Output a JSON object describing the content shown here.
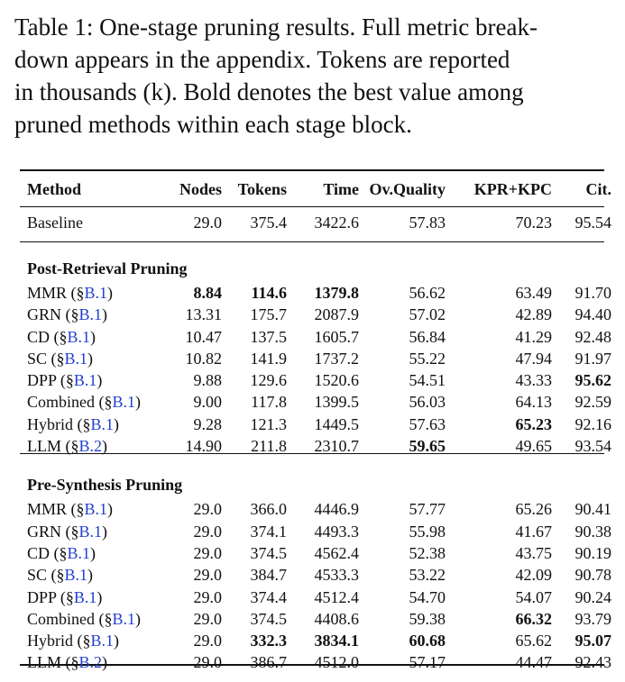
{
  "caption": {
    "lines": [
      "Table 1: One-stage pruning results. Full metric break-",
      "down appears in the appendix.  Tokens are reported",
      "in thousands (k).  Bold denotes the best value among",
      "pruned methods within each stage block."
    ]
  },
  "table": {
    "columns": [
      "Method",
      "Nodes",
      "Tokens",
      "Time",
      "Ov.Quality",
      "KPR+KPC",
      "Cit."
    ],
    "baseline": {
      "method": "Baseline",
      "values": [
        "29.0",
        "375.4",
        "3422.6",
        "57.83",
        "70.23",
        "95.54"
      ]
    },
    "sections": [
      {
        "title": "Post-Retrieval Pruning",
        "rows": [
          {
            "name": "MMR",
            "ref": "B.1",
            "values": [
              "8.84",
              "114.6",
              "1379.8",
              "56.62",
              "63.49",
              "91.70"
            ],
            "bold": [
              0,
              1,
              2
            ]
          },
          {
            "name": "GRN",
            "ref": "B.1",
            "values": [
              "13.31",
              "175.7",
              "2087.9",
              "57.02",
              "42.89",
              "94.40"
            ],
            "bold": []
          },
          {
            "name": "CD",
            "ref": "B.1",
            "values": [
              "10.47",
              "137.5",
              "1605.7",
              "56.84",
              "41.29",
              "92.48"
            ],
            "bold": []
          },
          {
            "name": "SC",
            "ref": "B.1",
            "values": [
              "10.82",
              "141.9",
              "1737.2",
              "55.22",
              "47.94",
              "91.97"
            ],
            "bold": []
          },
          {
            "name": "DPP",
            "ref": "B.1",
            "values": [
              "9.88",
              "129.6",
              "1520.6",
              "54.51",
              "43.33",
              "95.62"
            ],
            "bold": [
              5
            ]
          },
          {
            "name": "Combined",
            "ref": "B.1",
            "values": [
              "9.00",
              "117.8",
              "1399.5",
              "56.03",
              "64.13",
              "92.59"
            ],
            "bold": []
          },
          {
            "name": "Hybrid",
            "ref": "B.1",
            "values": [
              "9.28",
              "121.3",
              "1449.5",
              "57.63",
              "65.23",
              "92.16"
            ],
            "bold": [
              4
            ]
          },
          {
            "name": "LLM",
            "ref": "B.2",
            "values": [
              "14.90",
              "211.8",
              "2310.7",
              "59.65",
              "49.65",
              "93.54"
            ],
            "bold": [
              3
            ]
          }
        ]
      },
      {
        "title": "Pre-Synthesis Pruning",
        "rows": [
          {
            "name": "MMR",
            "ref": "B.1",
            "values": [
              "29.0",
              "366.0",
              "4446.9",
              "57.77",
              "65.26",
              "90.41"
            ],
            "bold": []
          },
          {
            "name": "GRN",
            "ref": "B.1",
            "values": [
              "29.0",
              "374.1",
              "4493.3",
              "55.98",
              "41.67",
              "90.38"
            ],
            "bold": []
          },
          {
            "name": "CD",
            "ref": "B.1",
            "values": [
              "29.0",
              "374.5",
              "4562.4",
              "52.38",
              "43.75",
              "90.19"
            ],
            "bold": []
          },
          {
            "name": "SC",
            "ref": "B.1",
            "values": [
              "29.0",
              "384.7",
              "4533.3",
              "53.22",
              "42.09",
              "90.78"
            ],
            "bold": []
          },
          {
            "name": "DPP",
            "ref": "B.1",
            "values": [
              "29.0",
              "374.4",
              "4512.4",
              "54.70",
              "54.07",
              "90.24"
            ],
            "bold": []
          },
          {
            "name": "Combined",
            "ref": "B.1",
            "values": [
              "29.0",
              "374.5",
              "4408.6",
              "59.38",
              "66.32",
              "93.79"
            ],
            "bold": [
              4
            ]
          },
          {
            "name": "Hybrid",
            "ref": "B.1",
            "values": [
              "29.0",
              "332.3",
              "3834.1",
              "60.68",
              "65.62",
              "95.07"
            ],
            "bold": [
              1,
              2,
              3,
              5
            ]
          },
          {
            "name": "LLM",
            "ref": "B.2",
            "values": [
              "29.0",
              "386.7",
              "4512.0",
              "57.17",
              "44.47",
              "92.43"
            ],
            "bold": []
          }
        ]
      }
    ]
  }
}
